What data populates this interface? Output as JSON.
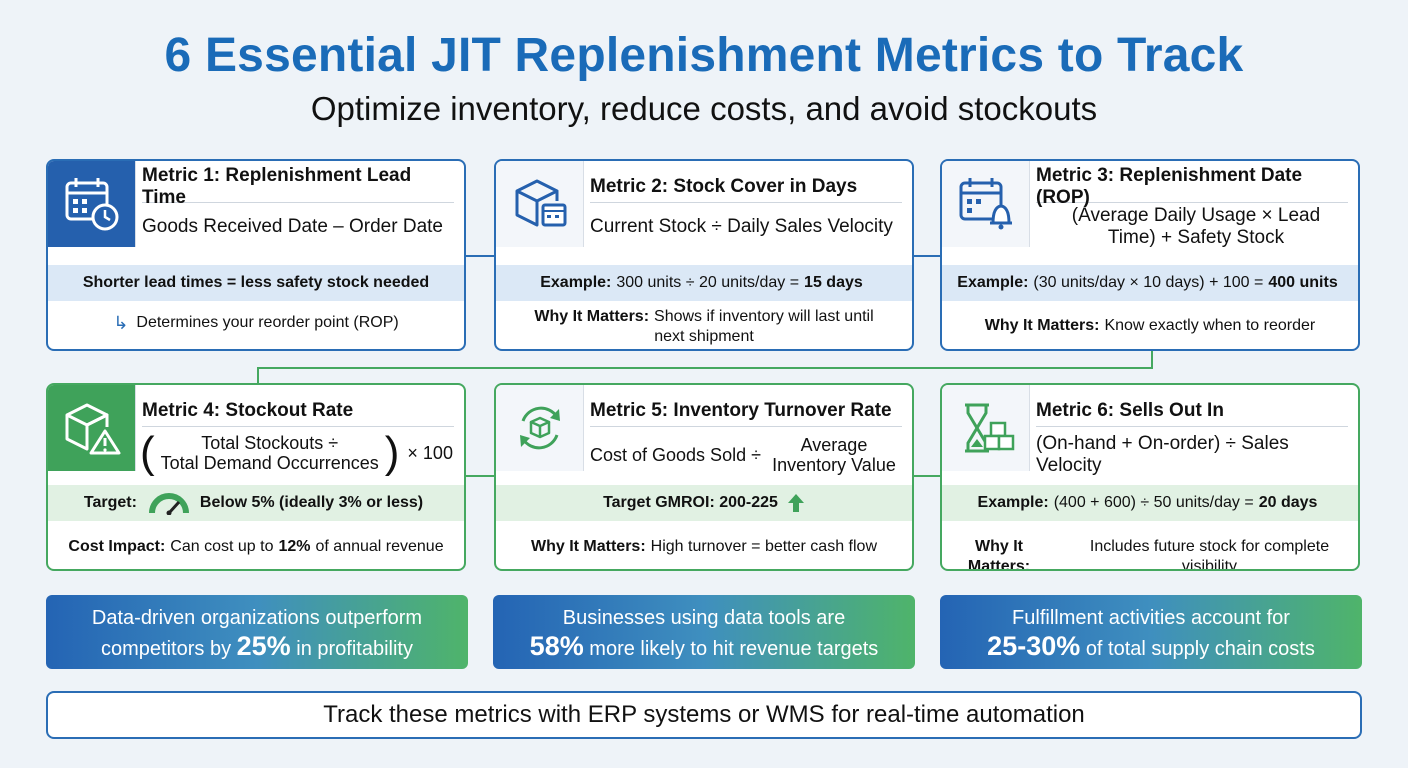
{
  "header": {
    "title": "6 Essential JIT Replenishment Metrics to Track",
    "subtitle": "Optimize inventory, reduce costs, and avoid stockouts"
  },
  "metrics": [
    {
      "title": "Metric 1: Replenishment Lead Time",
      "formula": "Goods Received Date – Order Date",
      "band": "Shorter lead times = less safety stock needed",
      "footer": "Determines your reorder point (ROP)",
      "icon": "calendar-clock-icon"
    },
    {
      "title": "Metric 2: Stock Cover in Days",
      "formula": "Current Stock ÷ Daily Sales Velocity",
      "band_label": "Example:",
      "band_text": "300 units ÷ 20 units/day =",
      "band_value": "15 days",
      "footer_label": "Why It Matters:",
      "footer_text": "Shows if inventory will last until next shipment",
      "icon": "box-calendar-icon"
    },
    {
      "title": "Metric 3: Replenishment Date (ROP)",
      "formula": "(Average Daily Usage × Lead Time) + Safety Stock",
      "band_label": "Example:",
      "band_text": "(30 units/day × 10 days) + 100 =",
      "band_value": "400 units",
      "footer_label": "Why It Matters:",
      "footer_text": "Know exactly when to reorder",
      "icon": "calendar-bell-icon"
    },
    {
      "title": "Metric 4: Stockout Rate",
      "formula_top": "Total Stockouts ÷",
      "formula_bottom": "Total Demand Occurrences",
      "formula_suffix": "× 100",
      "paren_open": "(",
      "paren_close": ")",
      "band_label": "Target:",
      "band_text": "Below 5% (ideally 3% or less)",
      "footer_label": "Cost Impact:",
      "footer_text": "Can cost up to",
      "footer_value": "12%",
      "footer_tail": "of annual revenue",
      "icon": "box-warning-icon"
    },
    {
      "title": "Metric 5: Inventory Turnover Rate",
      "formula_left": "Cost of Goods Sold ÷",
      "formula_right": "Average Inventory Value",
      "band_text": "Target GMROI: 200-225",
      "footer_label": "Why It Matters:",
      "footer_text": "High turnover = better cash flow",
      "icon": "box-cycle-icon"
    },
    {
      "title": "Metric 6: Sells Out In",
      "formula": "(On-hand + On-order) ÷ Sales Velocity",
      "band_label": "Example:",
      "band_text": "(400 + 600) ÷ 50 units/day =",
      "band_value": "20 days",
      "footer_label": "Why It Matters:",
      "footer_text": "Includes future stock for complete visibility",
      "icon": "hourglass-boxes-icon"
    }
  ],
  "stats": [
    {
      "line1": "Data-driven organizations outperform",
      "pre": "competitors by",
      "big": "25%",
      "post": "in profitability"
    },
    {
      "line1": "Businesses using data tools are",
      "pre": "",
      "big": "58%",
      "post": "more likely to hit revenue targets"
    },
    {
      "line1": "Fulfillment activities account for",
      "pre": "",
      "big": "25-30%",
      "post": "of total supply chain costs"
    }
  ],
  "banner": "Track these metrics with ERP systems or WMS for real-time automation",
  "colors": {
    "blue": "#2560ad",
    "green": "#3fa25a",
    "title": "#1a6bb8"
  }
}
